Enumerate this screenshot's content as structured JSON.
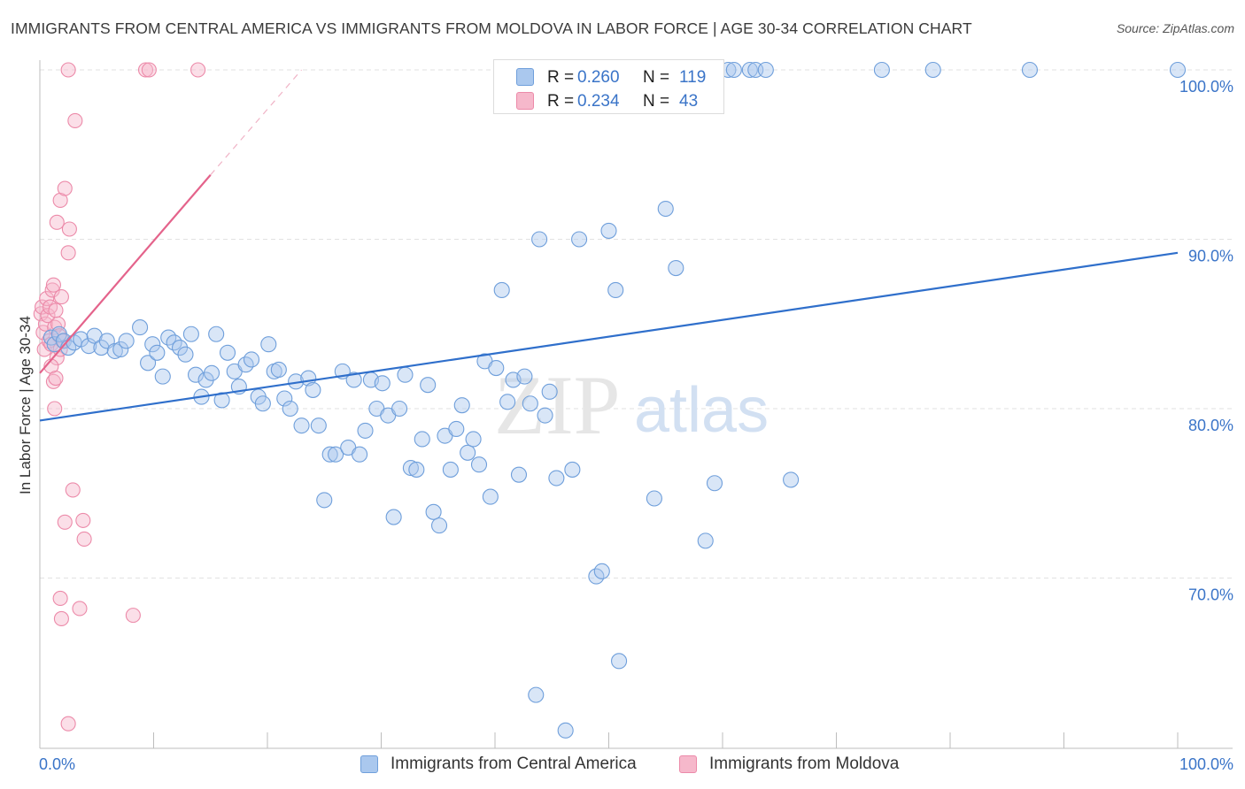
{
  "title": "IMMIGRANTS FROM CENTRAL AMERICA VS IMMIGRANTS FROM MOLDOVA IN LABOR FORCE | AGE 30-34 CORRELATION CHART",
  "source": "Source: ZipAtlas.com",
  "watermark": {
    "zip": "ZIP",
    "atlas": "atlas"
  },
  "legend_top": {
    "rows": [
      {
        "r_label": "R =",
        "r_value": "0.260",
        "n_label": "N =",
        "n_value": "119"
      },
      {
        "r_label": "R =",
        "r_value": "0.234",
        "n_label": "N =",
        "n_value": "43"
      }
    ]
  },
  "legend_bottom": {
    "items": [
      {
        "label": "Immigrants from Central America"
      },
      {
        "label": "Immigrants from Moldova"
      }
    ]
  },
  "colors": {
    "blue_fill": "#aac8ee",
    "blue_stroke": "#6f9fdb",
    "blue_line": "#2f6fcb",
    "pink_fill": "#f6b8cb",
    "pink_stroke": "#ec8aa9",
    "pink_line": "#e4638b",
    "axis_label": "#3a74c8",
    "grid": "#e2e2e2"
  },
  "chart_data": {
    "type": "scatter",
    "title": "IMMIGRANTS FROM CENTRAL AMERICA VS IMMIGRANTS FROM MOLDOVA IN LABOR FORCE | AGE 30-34 CORRELATION CHART",
    "xlabel": "",
    "ylabel": "In Labor Force | Age 30-34",
    "xlim": [
      0,
      100
    ],
    "ylim": [
      60,
      101.5
    ],
    "x_tick_labels": [
      "0.0%",
      "100.0%"
    ],
    "y_ticks": [
      70,
      80,
      90,
      100
    ],
    "y_tick_labels": [
      "70.0%",
      "80.0%",
      "90.0%",
      "100.0%"
    ],
    "grid": true,
    "legend_placement": "bottom",
    "series": [
      {
        "name": "Immigrants from Central America",
        "R": 0.26,
        "N": 119,
        "trend": {
          "x": [
            0,
            100
          ],
          "y": [
            79.3,
            89.2
          ]
        },
        "points": [
          [
            1.0,
            84.2
          ],
          [
            1.3,
            83.8
          ],
          [
            1.7,
            84.4
          ],
          [
            2.1,
            84.0
          ],
          [
            2.5,
            83.6
          ],
          [
            3.0,
            83.9
          ],
          [
            3.6,
            84.1
          ],
          [
            4.3,
            83.7
          ],
          [
            4.8,
            84.3
          ],
          [
            5.4,
            83.6
          ],
          [
            5.9,
            84.0
          ],
          [
            6.6,
            83.4
          ],
          [
            7.1,
            83.5
          ],
          [
            7.6,
            84.0
          ],
          [
            8.8,
            84.8
          ],
          [
            9.5,
            82.7
          ],
          [
            9.9,
            83.8
          ],
          [
            10.3,
            83.3
          ],
          [
            10.8,
            81.9
          ],
          [
            11.3,
            84.2
          ],
          [
            11.8,
            83.9
          ],
          [
            12.3,
            83.6
          ],
          [
            12.8,
            83.2
          ],
          [
            13.3,
            84.4
          ],
          [
            13.7,
            82.0
          ],
          [
            14.2,
            80.7
          ],
          [
            14.6,
            81.7
          ],
          [
            15.1,
            82.1
          ],
          [
            15.5,
            84.4
          ],
          [
            16.0,
            80.5
          ],
          [
            16.5,
            83.3
          ],
          [
            17.1,
            82.2
          ],
          [
            17.5,
            81.3
          ],
          [
            18.1,
            82.6
          ],
          [
            18.6,
            82.9
          ],
          [
            19.2,
            80.7
          ],
          [
            19.6,
            80.3
          ],
          [
            20.1,
            83.8
          ],
          [
            20.6,
            82.2
          ],
          [
            21.0,
            82.3
          ],
          [
            21.5,
            80.6
          ],
          [
            22.0,
            80.0
          ],
          [
            22.5,
            81.6
          ],
          [
            23.0,
            79.0
          ],
          [
            23.6,
            81.8
          ],
          [
            24.0,
            81.1
          ],
          [
            24.5,
            79.0
          ],
          [
            25.0,
            74.6
          ],
          [
            25.5,
            77.3
          ],
          [
            26.0,
            77.3
          ],
          [
            26.6,
            82.2
          ],
          [
            27.1,
            77.7
          ],
          [
            27.6,
            81.7
          ],
          [
            28.1,
            77.3
          ],
          [
            28.6,
            78.7
          ],
          [
            29.1,
            81.7
          ],
          [
            29.6,
            80.0
          ],
          [
            30.1,
            81.5
          ],
          [
            30.6,
            79.6
          ],
          [
            31.1,
            73.6
          ],
          [
            31.6,
            80.0
          ],
          [
            32.1,
            82.0
          ],
          [
            32.6,
            76.5
          ],
          [
            33.1,
            76.4
          ],
          [
            33.6,
            78.2
          ],
          [
            34.1,
            81.4
          ],
          [
            34.6,
            73.9
          ],
          [
            35.1,
            73.1
          ],
          [
            35.6,
            78.4
          ],
          [
            36.1,
            76.4
          ],
          [
            36.6,
            78.8
          ],
          [
            37.1,
            80.2
          ],
          [
            37.6,
            77.4
          ],
          [
            38.1,
            78.2
          ],
          [
            38.6,
            76.7
          ],
          [
            39.1,
            82.8
          ],
          [
            39.6,
            74.8
          ],
          [
            40.1,
            82.4
          ],
          [
            40.6,
            87.0
          ],
          [
            41.1,
            80.4
          ],
          [
            41.6,
            81.7
          ],
          [
            42.1,
            76.1
          ],
          [
            42.6,
            81.9
          ],
          [
            43.1,
            80.3
          ],
          [
            43.6,
            63.1
          ],
          [
            43.9,
            90.0
          ],
          [
            44.4,
            79.6
          ],
          [
            44.8,
            81.0
          ],
          [
            45.4,
            75.9
          ],
          [
            46.2,
            61.0
          ],
          [
            46.8,
            76.4
          ],
          [
            47.4,
            90.0
          ],
          [
            48.9,
            70.1
          ],
          [
            49.4,
            70.4
          ],
          [
            50.0,
            90.5
          ],
          [
            50.6,
            87.0
          ],
          [
            50.9,
            65.1
          ],
          [
            54.0,
            74.7
          ],
          [
            55.0,
            91.8
          ],
          [
            55.9,
            88.3
          ],
          [
            58.5,
            72.2
          ],
          [
            59.3,
            75.6
          ],
          [
            66.0,
            75.8
          ],
          [
            46.0,
            100.0
          ],
          [
            48.0,
            100.0
          ],
          [
            50.8,
            100.0
          ],
          [
            55.0,
            100.0
          ],
          [
            59.0,
            100.0
          ],
          [
            60.5,
            100.0
          ],
          [
            61.0,
            100.0
          ],
          [
            62.4,
            100.0
          ],
          [
            62.9,
            100.0
          ],
          [
            63.8,
            100.0
          ],
          [
            74.0,
            100.0
          ],
          [
            78.5,
            100.0
          ],
          [
            87.0,
            100.0
          ],
          [
            100.0,
            100.0
          ]
        ]
      },
      {
        "name": "Immigrants from Moldova",
        "R": 0.234,
        "N": 43,
        "trend": {
          "x": [
            0,
            15
          ],
          "y": [
            82.1,
            93.8
          ]
        },
        "trend_extension": {
          "x": [
            15,
            23
          ],
          "y": [
            93.8,
            100.0
          ]
        },
        "points": [
          [
            0.1,
            85.6
          ],
          [
            0.2,
            86.0
          ],
          [
            0.3,
            84.5
          ],
          [
            0.4,
            83.5
          ],
          [
            0.5,
            85.0
          ],
          [
            0.6,
            86.5
          ],
          [
            0.7,
            85.5
          ],
          [
            0.8,
            84.0
          ],
          [
            0.9,
            86.0
          ],
          [
            1.0,
            83.8
          ],
          [
            1.1,
            87.0
          ],
          [
            1.2,
            87.3
          ],
          [
            1.3,
            84.8
          ],
          [
            1.4,
            85.8
          ],
          [
            1.5,
            83.0
          ],
          [
            1.6,
            85.0
          ],
          [
            1.7,
            84.3
          ],
          [
            1.8,
            83.5
          ],
          [
            1.9,
            86.6
          ],
          [
            2.0,
            84.0
          ],
          [
            1.0,
            82.5
          ],
          [
            1.2,
            81.6
          ],
          [
            1.4,
            81.8
          ],
          [
            1.3,
            80.0
          ],
          [
            1.5,
            91.0
          ],
          [
            1.8,
            92.3
          ],
          [
            2.2,
            93.0
          ],
          [
            2.5,
            89.2
          ],
          [
            2.6,
            90.6
          ],
          [
            2.2,
            73.3
          ],
          [
            2.9,
            75.2
          ],
          [
            3.8,
            73.4
          ],
          [
            3.9,
            72.3
          ],
          [
            1.8,
            68.8
          ],
          [
            1.9,
            67.6
          ],
          [
            3.5,
            68.2
          ],
          [
            8.2,
            67.8
          ],
          [
            2.5,
            61.4
          ],
          [
            2.5,
            100.0
          ],
          [
            9.3,
            100.0
          ],
          [
            9.6,
            100.0
          ],
          [
            13.9,
            100.0
          ],
          [
            3.1,
            97.0
          ]
        ]
      }
    ]
  }
}
